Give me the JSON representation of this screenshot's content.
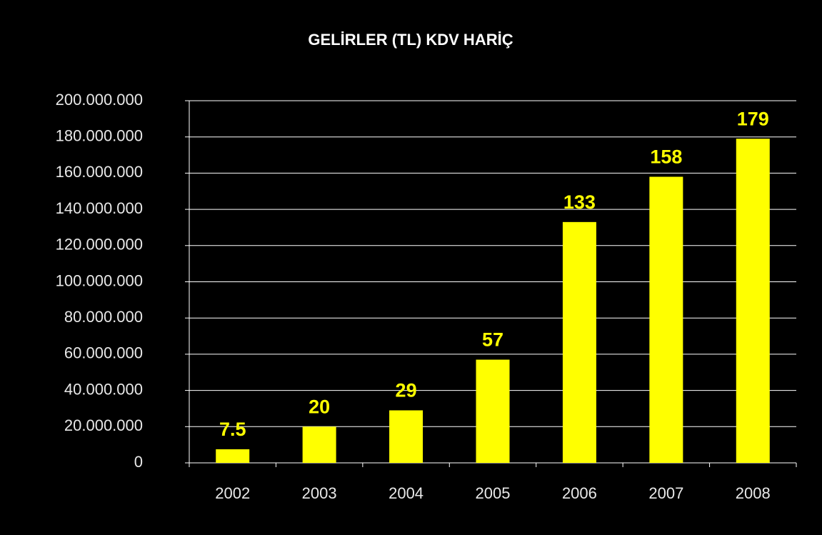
{
  "chart_data": {
    "type": "bar",
    "title": "GELİRLER (TL) KDV HARİÇ",
    "categories": [
      "2002",
      "2003",
      "2004",
      "2005",
      "2006",
      "2007",
      "2008"
    ],
    "values": [
      7500000,
      20000000,
      29000000,
      57000000,
      133000000,
      158000000,
      179000000
    ],
    "value_labels": [
      "7.5",
      "20",
      "29",
      "57",
      "133",
      "158",
      "179"
    ],
    "color": "#ffff00",
    "ylim": [
      0,
      200000000
    ],
    "yticks": [
      0,
      {
        "value": 20000000,
        "label": "20.000.000"
      },
      {
        "value": 40000000,
        "label": "40.000.000"
      },
      {
        "value": 60000000,
        "label": "60.000.000"
      },
      {
        "value": 80000000,
        "label": "80.000.000"
      },
      {
        "value": 100000000,
        "label": "100.000.000"
      },
      {
        "value": 120000000,
        "label": "120.000.000"
      },
      {
        "value": 140000000,
        "label": "140.000.000"
      },
      {
        "value": 160000000,
        "label": "160.000.000"
      },
      {
        "value": 180000000,
        "label": "180.000.000"
      },
      {
        "value": 200000000,
        "label": "200.000.000"
      }
    ],
    "grid": true
  }
}
